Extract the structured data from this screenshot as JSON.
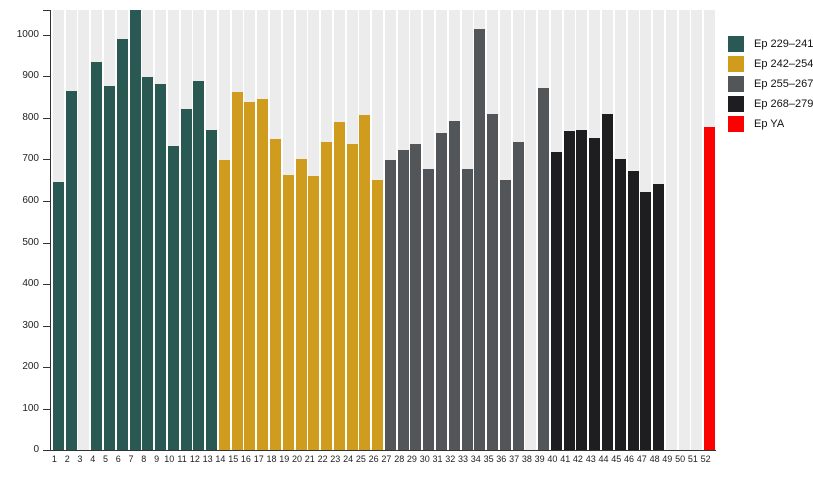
{
  "chart_data": {
    "type": "bar",
    "title": "",
    "xlabel": "",
    "ylabel": "",
    "x": [
      1,
      2,
      3,
      4,
      5,
      6,
      7,
      8,
      9,
      10,
      11,
      12,
      13,
      14,
      15,
      16,
      17,
      18,
      19,
      20,
      21,
      22,
      23,
      24,
      25,
      26,
      27,
      28,
      29,
      30,
      31,
      32,
      33,
      34,
      35,
      36,
      37,
      38,
      39,
      40,
      41,
      42,
      43,
      44,
      45,
      46,
      47,
      48,
      49,
      50,
      51,
      52
    ],
    "values": [
      645,
      865,
      null,
      935,
      878,
      990,
      1060,
      898,
      882,
      732,
      822,
      890,
      772,
      698,
      862,
      838,
      845,
      750,
      662,
      700,
      660,
      742,
      790,
      737,
      806,
      650,
      698,
      722,
      737,
      678,
      765,
      792,
      678,
      1014,
      810,
      650,
      742,
      null,
      872,
      718,
      768,
      770,
      752,
      810,
      702,
      672,
      622,
      640,
      null,
      null,
      null,
      778
    ],
    "group_index": [
      0,
      0,
      0,
      0,
      0,
      0,
      0,
      0,
      0,
      0,
      0,
      0,
      0,
      1,
      1,
      1,
      1,
      1,
      1,
      1,
      1,
      1,
      1,
      1,
      1,
      1,
      2,
      2,
      2,
      2,
      2,
      2,
      2,
      2,
      2,
      2,
      2,
      2,
      2,
      3,
      3,
      3,
      3,
      3,
      3,
      3,
      3,
      3,
      null,
      null,
      null,
      4
    ],
    "legend": [
      {
        "label": "Ep 229–241",
        "color": "#2a5852"
      },
      {
        "label": "Ep 242–254",
        "color": "#d09c1e"
      },
      {
        "label": "Ep 255–267",
        "color": "#535659"
      },
      {
        "label": "Ep 268–279",
        "color": "#1e1e20"
      },
      {
        "label": "Ep YA",
        "color": "#fa0202"
      }
    ],
    "yticks": [
      0,
      100,
      200,
      300,
      400,
      500,
      600,
      700,
      800,
      900,
      1000
    ],
    "ylim": [
      0,
      1060
    ],
    "grid": false,
    "legend_position": "top-right",
    "stripe_color": "#ececec",
    "axis_color": "#333333"
  },
  "layout_note": "weekly episode-rating style bar chart, missing bars at weeks 3, 38, 49, 50, 51"
}
